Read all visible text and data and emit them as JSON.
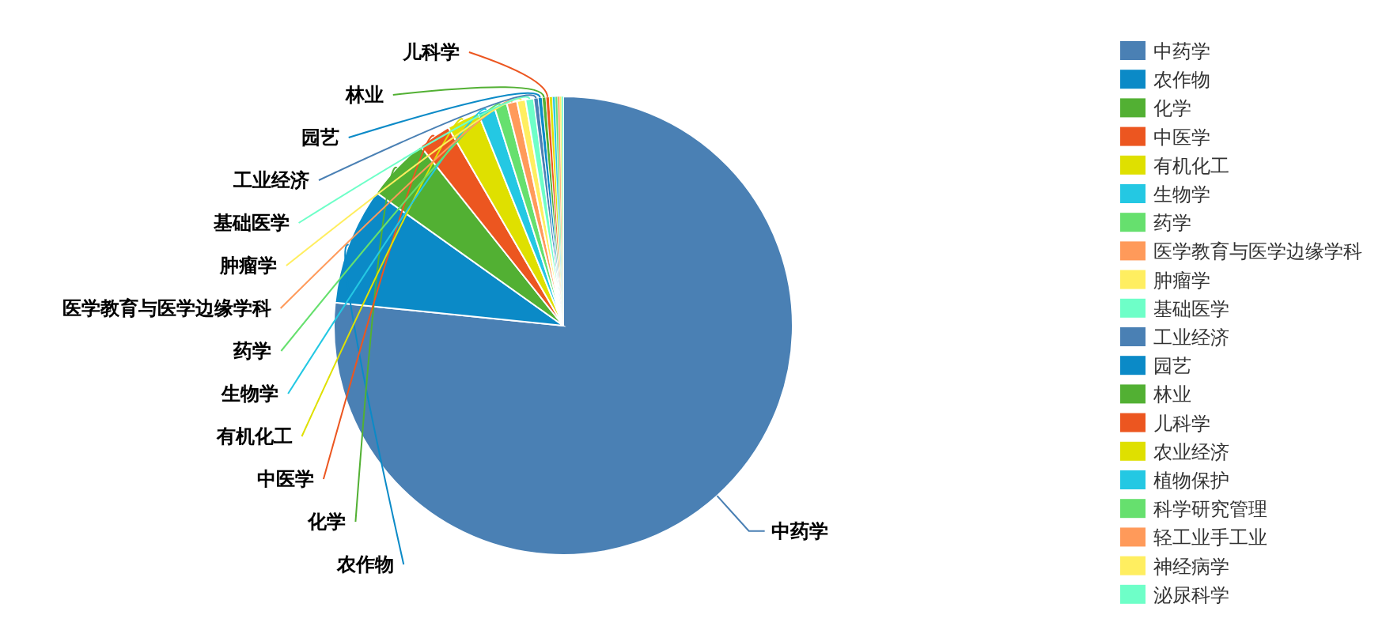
{
  "chart_data": {
    "type": "pie",
    "legend": "right",
    "categories": [
      "中药学",
      "农作物",
      "化学",
      "中医学",
      "有机化工",
      "生物学",
      "药学",
      "医学教育与医学边缘学科",
      "肿瘤学",
      "基础医学",
      "工业经济",
      "园艺",
      "林业",
      "儿科学",
      "农业经济",
      "植物保护",
      "科学研究管理",
      "轻工业手工业",
      "神经病学",
      "泌尿科学"
    ],
    "values": [
      76.61,
      8.25,
      4.45,
      2.33,
      2.3,
      1.2,
      0.9,
      0.72,
      0.6,
      0.58,
      0.31,
      0.28,
      0.26,
      0.24,
      0.22,
      0.19,
      0.17,
      0.15,
      0.12,
      0.12
    ],
    "colors": [
      "#4a80b4",
      "#0b8ac7",
      "#52b033",
      "#ec5620",
      "#dfe000",
      "#24c8e3",
      "#66e06e",
      "#ff9a5a",
      "#ffee60",
      "#6effc8",
      "#4a80b4",
      "#0b8ac7",
      "#52b033",
      "#ec5620",
      "#dfe000",
      "#24c8e3",
      "#66e06e",
      "#ff9a5a",
      "#ffee60",
      "#6effc8"
    ]
  }
}
